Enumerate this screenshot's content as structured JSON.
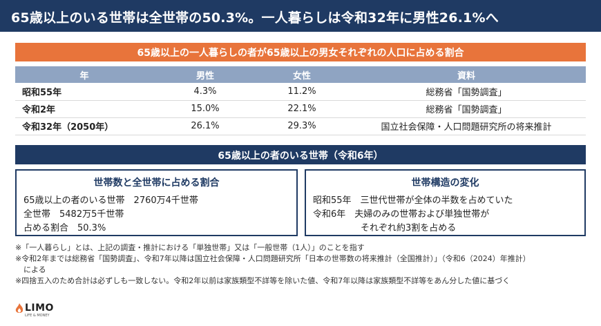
{
  "header": {
    "title": "65歳以上のいる世帯は全世帯の50.3%。一人暮らしは令和32年に男性26.1%へ"
  },
  "section1": {
    "title": "65歳以上の一人暮らしの者が65歳以上の男女それぞれの人口に占める割合",
    "columns": [
      "年",
      "男性",
      "女性",
      "資料"
    ],
    "rows": [
      {
        "year": "昭和55年",
        "male": "4.3%",
        "female": "11.2%",
        "source": "総務省「国勢調査」"
      },
      {
        "year": "令和2年",
        "male": "15.0%",
        "female": "22.1%",
        "source": "総務省「国勢調査」"
      },
      {
        "year": "令和32年（2050年）",
        "male": "26.1%",
        "female": "29.3%",
        "source": "国立社会保障・人口問題研究所の将来推計"
      }
    ]
  },
  "section2": {
    "title": "65歳以上の者のいる世帯（令和6年）",
    "left_box": {
      "title": "世帯数と全世帯に占める割合",
      "lines": [
        "65歳以上の者のいる世帯　2760万4千世帯",
        "全世帯　5482万5千世帯",
        "占める割合　50.3%"
      ]
    },
    "right_box": {
      "title": "世帯構造の変化",
      "lines": [
        "昭和55年　三世代世帯が全体の半数を占めていた",
        "令和6年　夫婦のみの世帯および単独世帯が",
        "それぞれ約3割を占める"
      ]
    }
  },
  "notes": [
    "※「一人暮らし」とは、上記の調査・推計における「単独世帯」又は「一般世帯（1人）」のことを指す",
    "※令和2年までは総務省「国勢調査」、令和7年以降は国立社会保障・人口問題研究所「日本の世帯数の将来推計（全国推計）」（令和6（2024）年推計）",
    "による",
    "※四捨五入のため合計は必ずしも一致しない。令和2年以前は家族類型不詳等を除いた値、令和7年以降は家族類型不詳等をあん分した値に基づく"
  ],
  "logo": {
    "name": "LIMO",
    "tagline": "LIFE & MONEY",
    "color": "#e8743b"
  },
  "colors": {
    "navy": "#1f3a63",
    "orange": "#e8743b",
    "table_header": "#8fa4c2"
  }
}
